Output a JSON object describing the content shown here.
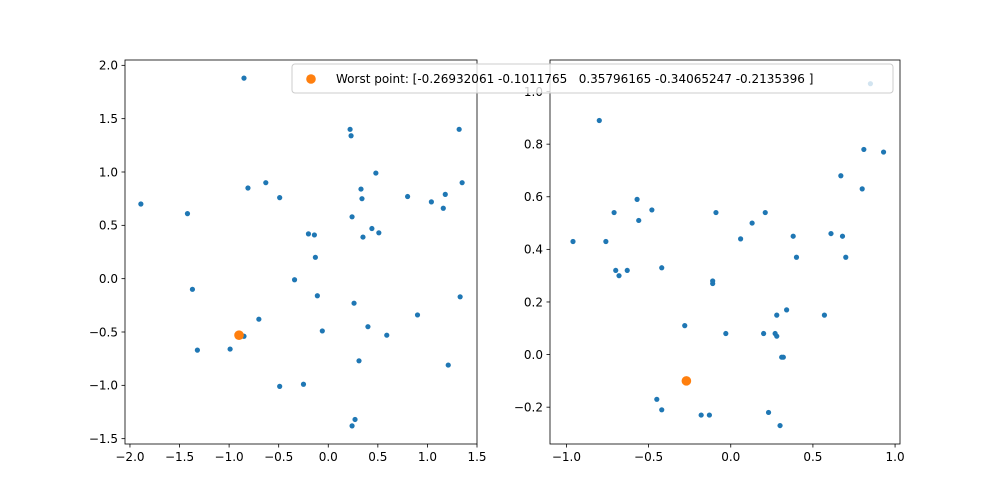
{
  "chart_data": [
    {
      "type": "scatter",
      "xlim": [
        -2.05,
        1.5
      ],
      "ylim": [
        -1.55,
        2.05
      ],
      "xticks": [
        -2.0,
        -1.5,
        -1.0,
        -0.5,
        0.0,
        0.5,
        1.0,
        1.5
      ],
      "xtick_labels": [
        "−2.0",
        "−1.5",
        "−1.0",
        "−0.5",
        "0.0",
        "0.5",
        "1.0",
        "1.5"
      ],
      "yticks": [
        -1.5,
        -1.0,
        -0.5,
        0.0,
        0.5,
        1.0,
        1.5,
        2.0
      ],
      "ytick_labels": [
        "−1.5",
        "−1.0",
        "−0.5",
        "0.0",
        "0.5",
        "1.0",
        "1.5",
        "2.0"
      ],
      "grid": false,
      "series": [
        {
          "color": "#1f77b4",
          "marker_size": "small",
          "points": [
            [
              -0.85,
              1.88
            ],
            [
              -1.89,
              0.7
            ],
            [
              -1.42,
              0.61
            ],
            [
              -1.37,
              -0.1
            ],
            [
              -1.32,
              -0.67
            ],
            [
              -0.99,
              -0.66
            ],
            [
              -0.85,
              -0.54
            ],
            [
              -0.81,
              0.85
            ],
            [
              -0.7,
              -0.38
            ],
            [
              -0.63,
              0.9
            ],
            [
              -0.49,
              0.76
            ],
            [
              -0.49,
              -1.01
            ],
            [
              -0.34,
              -0.01
            ],
            [
              -0.25,
              -0.99
            ],
            [
              -0.2,
              0.42
            ],
            [
              -0.14,
              0.41
            ],
            [
              -0.13,
              0.2
            ],
            [
              -0.11,
              -0.16
            ],
            [
              -0.06,
              -0.49
            ],
            [
              0.22,
              1.4
            ],
            [
              0.23,
              1.34
            ],
            [
              0.24,
              0.58
            ],
            [
              0.24,
              -1.38
            ],
            [
              0.26,
              -0.23
            ],
            [
              0.27,
              -1.32
            ],
            [
              0.31,
              -0.77
            ],
            [
              0.33,
              0.84
            ],
            [
              0.34,
              0.75
            ],
            [
              0.35,
              0.39
            ],
            [
              0.4,
              -0.45
            ],
            [
              0.44,
              0.47
            ],
            [
              0.48,
              0.99
            ],
            [
              0.51,
              0.43
            ],
            [
              0.59,
              -0.53
            ],
            [
              0.8,
              0.77
            ],
            [
              0.9,
              -0.34
            ],
            [
              1.04,
              0.72
            ],
            [
              1.16,
              0.66
            ],
            [
              1.18,
              0.79
            ],
            [
              1.21,
              -0.81
            ],
            [
              1.32,
              1.4
            ],
            [
              1.33,
              -0.17
            ],
            [
              1.35,
              0.9
            ]
          ]
        },
        {
          "color": "#ff7f0e",
          "marker_size": "large",
          "points": [
            [
              -0.9,
              -0.53
            ]
          ]
        }
      ]
    },
    {
      "type": "scatter",
      "xlim": [
        -1.1,
        1.03
      ],
      "ylim": [
        -0.34,
        1.12
      ],
      "xticks": [
        -1.0,
        -0.5,
        0.0,
        0.5,
        1.0
      ],
      "xtick_labels": [
        "−1.0",
        "−0.5",
        "0.0",
        "0.5",
        "1.0"
      ],
      "yticks": [
        -0.2,
        0.0,
        0.2,
        0.4,
        0.6,
        0.8,
        1.0
      ],
      "ytick_labels": [
        "−0.2",
        "0.0",
        "0.2",
        "0.4",
        "0.6",
        "0.8",
        "1.0"
      ],
      "grid": false,
      "series": [
        {
          "color": "#1f77b4",
          "marker_size": "small",
          "points": [
            [
              -0.96,
              0.43
            ],
            [
              -0.8,
              0.89
            ],
            [
              -0.76,
              0.43
            ],
            [
              -0.71,
              0.54
            ],
            [
              -0.7,
              0.32
            ],
            [
              -0.68,
              0.3
            ],
            [
              -0.63,
              0.32
            ],
            [
              -0.57,
              0.59
            ],
            [
              -0.56,
              0.51
            ],
            [
              -0.48,
              0.55
            ],
            [
              -0.45,
              -0.17
            ],
            [
              -0.42,
              0.33
            ],
            [
              -0.42,
              -0.21
            ],
            [
              -0.28,
              0.11
            ],
            [
              -0.18,
              -0.23
            ],
            [
              -0.13,
              -0.23
            ],
            [
              -0.11,
              0.27
            ],
            [
              -0.11,
              0.28
            ],
            [
              -0.09,
              0.54
            ],
            [
              -0.03,
              0.08
            ],
            [
              0.06,
              0.44
            ],
            [
              0.13,
              0.5
            ],
            [
              0.2,
              0.08
            ],
            [
              0.21,
              0.54
            ],
            [
              0.23,
              -0.22
            ],
            [
              0.27,
              0.08
            ],
            [
              0.28,
              0.07
            ],
            [
              0.28,
              0.15
            ],
            [
              0.3,
              -0.27
            ],
            [
              0.31,
              -0.01
            ],
            [
              0.32,
              -0.01
            ],
            [
              0.34,
              0.17
            ],
            [
              0.38,
              0.45
            ],
            [
              0.4,
              0.37
            ],
            [
              0.57,
              0.15
            ],
            [
              0.61,
              0.46
            ],
            [
              0.67,
              0.68
            ],
            [
              0.68,
              0.45
            ],
            [
              0.7,
              0.37
            ],
            [
              0.8,
              0.63
            ],
            [
              0.81,
              0.78
            ],
            [
              0.85,
              1.03
            ],
            [
              0.93,
              0.77
            ]
          ]
        },
        {
          "color": "#ff7f0e",
          "marker_size": "large",
          "points": [
            [
              -0.27,
              -0.1
            ]
          ]
        }
      ]
    }
  ],
  "legend": {
    "label": "Worst point: [-0.26932061 -0.1011765   0.35796165 -0.34065247 -0.2135396 ]",
    "marker_color": "#ff7f0e",
    "placement": "top, spanning both plots"
  }
}
